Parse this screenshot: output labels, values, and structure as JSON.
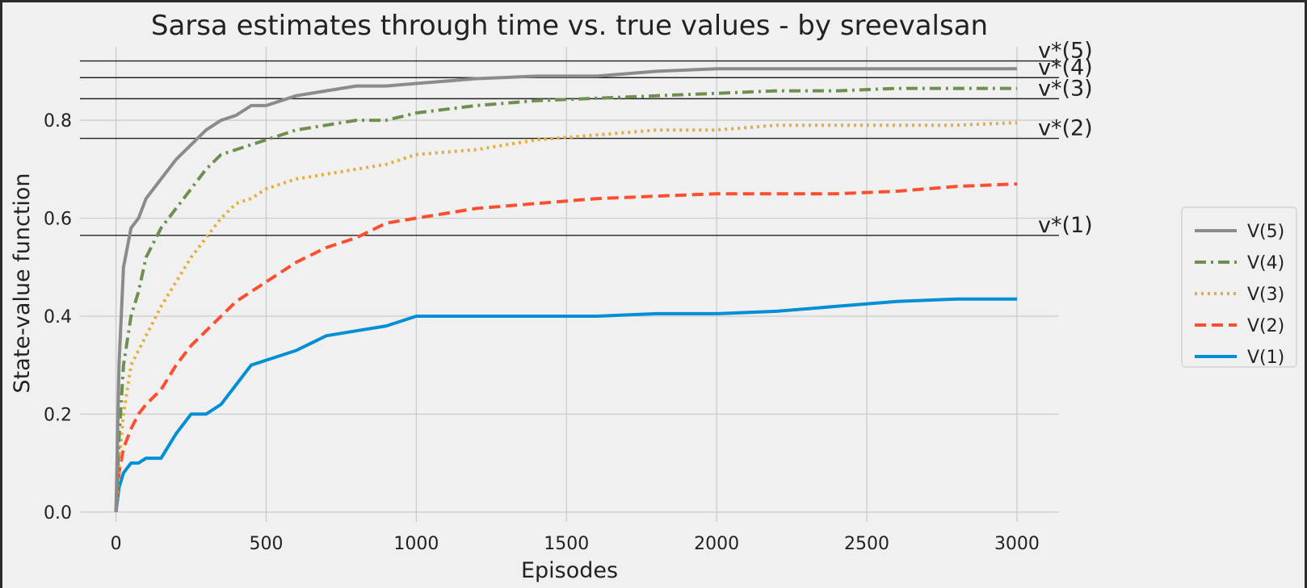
{
  "chart_data": {
    "type": "line",
    "title": "Sarsa estimates through time vs. true values - by sreevalsan",
    "xlabel": "Episodes",
    "ylabel": "State-value function",
    "xlim": [
      -120,
      3140
    ],
    "ylim": [
      -0.02,
      0.95
    ],
    "xticks": [
      0,
      500,
      1000,
      1500,
      2000,
      2500,
      3000
    ],
    "yticks": [
      0.0,
      0.2,
      0.4,
      0.6,
      0.8
    ],
    "grid": true,
    "legend_position": "right-outside",
    "reference_lines": [
      {
        "label": "v*(5)",
        "value": 0.921
      },
      {
        "label": "v*(4)",
        "value": 0.887
      },
      {
        "label": "v*(3)",
        "value": 0.844
      },
      {
        "label": "v*(2)",
        "value": 0.763
      },
      {
        "label": "v*(1)",
        "value": 0.565
      }
    ],
    "series": [
      {
        "name": "V(5)",
        "color": "#8b8b8b",
        "style": "solid",
        "x": [
          0,
          10,
          25,
          50,
          75,
          100,
          150,
          200,
          250,
          300,
          350,
          400,
          450,
          500,
          600,
          700,
          800,
          900,
          1000,
          1100,
          1200,
          1400,
          1600,
          1800,
          2000,
          2200,
          2400,
          2600,
          2800,
          3000
        ],
        "y": [
          0.0,
          0.3,
          0.5,
          0.58,
          0.6,
          0.64,
          0.68,
          0.72,
          0.75,
          0.78,
          0.8,
          0.81,
          0.83,
          0.83,
          0.85,
          0.86,
          0.87,
          0.87,
          0.875,
          0.88,
          0.885,
          0.89,
          0.89,
          0.9,
          0.905,
          0.905,
          0.905,
          0.905,
          0.905,
          0.905
        ]
      },
      {
        "name": "V(4)",
        "color": "#6d904f",
        "style": "dashdot",
        "x": [
          0,
          10,
          25,
          50,
          75,
          100,
          150,
          200,
          250,
          300,
          350,
          400,
          450,
          500,
          600,
          700,
          800,
          900,
          1000,
          1200,
          1400,
          1600,
          1800,
          2000,
          2200,
          2400,
          2600,
          2800,
          3000
        ],
        "y": [
          0.0,
          0.15,
          0.3,
          0.4,
          0.45,
          0.52,
          0.58,
          0.62,
          0.66,
          0.7,
          0.73,
          0.74,
          0.75,
          0.76,
          0.78,
          0.79,
          0.8,
          0.8,
          0.815,
          0.83,
          0.84,
          0.845,
          0.85,
          0.855,
          0.86,
          0.86,
          0.865,
          0.865,
          0.865
        ]
      },
      {
        "name": "V(3)",
        "color": "#e5ae38",
        "style": "dotted",
        "x": [
          0,
          10,
          25,
          50,
          75,
          100,
          150,
          200,
          250,
          300,
          350,
          400,
          450,
          500,
          600,
          700,
          800,
          900,
          1000,
          1200,
          1400,
          1600,
          1800,
          2000,
          2200,
          2400,
          2600,
          2800,
          3000
        ],
        "y": [
          0.0,
          0.1,
          0.2,
          0.3,
          0.33,
          0.36,
          0.42,
          0.47,
          0.52,
          0.56,
          0.6,
          0.63,
          0.64,
          0.66,
          0.68,
          0.69,
          0.7,
          0.71,
          0.73,
          0.74,
          0.76,
          0.77,
          0.78,
          0.78,
          0.79,
          0.79,
          0.79,
          0.79,
          0.795
        ]
      },
      {
        "name": "V(2)",
        "color": "#fc4f30",
        "style": "dashed",
        "x": [
          0,
          10,
          25,
          50,
          75,
          100,
          150,
          200,
          250,
          300,
          350,
          400,
          450,
          500,
          600,
          700,
          800,
          900,
          1000,
          1200,
          1400,
          1600,
          1800,
          2000,
          2200,
          2400,
          2600,
          2800,
          3000
        ],
        "y": [
          0.0,
          0.08,
          0.13,
          0.17,
          0.2,
          0.22,
          0.25,
          0.3,
          0.34,
          0.37,
          0.4,
          0.43,
          0.45,
          0.47,
          0.51,
          0.54,
          0.56,
          0.59,
          0.6,
          0.62,
          0.63,
          0.64,
          0.645,
          0.65,
          0.65,
          0.65,
          0.655,
          0.665,
          0.67
        ]
      },
      {
        "name": "V(1)",
        "color": "#008fd5",
        "style": "solid",
        "x": [
          0,
          10,
          25,
          50,
          75,
          100,
          150,
          200,
          250,
          300,
          350,
          400,
          450,
          500,
          600,
          700,
          800,
          900,
          1000,
          1200,
          1400,
          1600,
          1800,
          2000,
          2200,
          2400,
          2600,
          2800,
          3000
        ],
        "y": [
          0.0,
          0.05,
          0.08,
          0.1,
          0.1,
          0.11,
          0.11,
          0.16,
          0.2,
          0.2,
          0.22,
          0.26,
          0.3,
          0.31,
          0.33,
          0.36,
          0.37,
          0.38,
          0.4,
          0.4,
          0.4,
          0.4,
          0.405,
          0.405,
          0.41,
          0.42,
          0.43,
          0.435,
          0.435
        ]
      }
    ]
  }
}
